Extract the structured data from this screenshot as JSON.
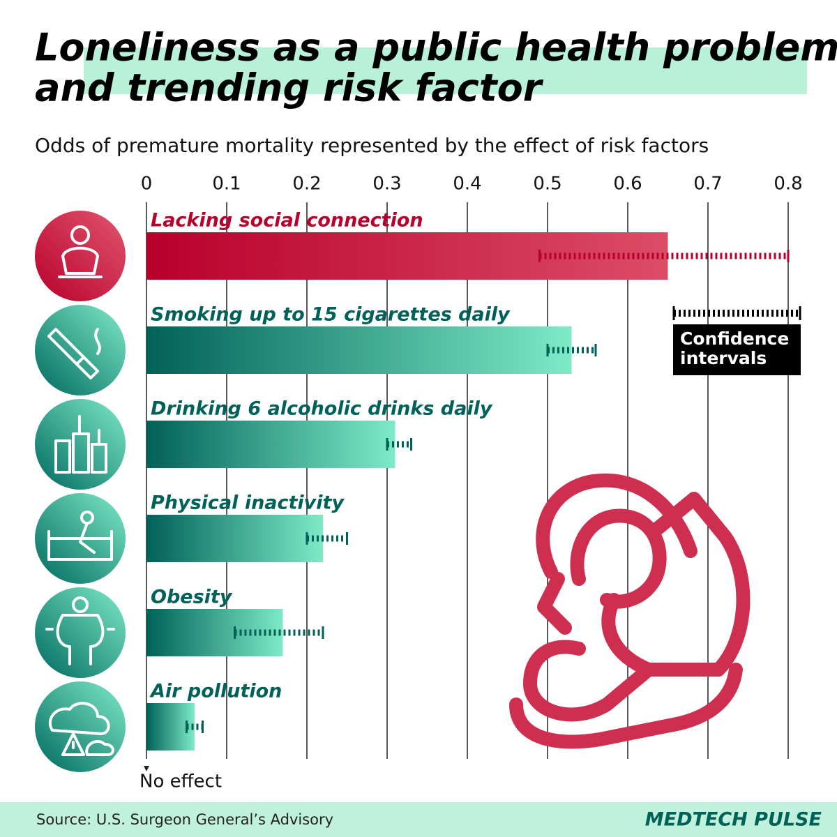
{
  "chart_data": {
    "type": "bar",
    "title_lines": [
      "Loneliness as a public health problem",
      "and trending risk factor"
    ],
    "subtitle": "Odds of premature mortality represented by the effect of risk factors",
    "categories": [
      "Lacking social connection",
      "Smoking up to 15 cigarettes daily",
      "Drinking 6 alcoholic drinks daily",
      "Physical inactivity",
      "Obesity",
      "Air pollution"
    ],
    "values": [
      0.65,
      0.53,
      0.31,
      0.22,
      0.17,
      0.06
    ],
    "ci_low": [
      0.49,
      0.5,
      0.3,
      0.2,
      0.11,
      0.05
    ],
    "ci_high": [
      0.8,
      0.56,
      0.33,
      0.25,
      0.22,
      0.07
    ],
    "bar_colors": [
      [
        "#b8002c",
        "#dc4d66"
      ],
      [
        "#006158",
        "#7eeac6"
      ],
      [
        "#006158",
        "#7eeac6"
      ],
      [
        "#006158",
        "#7eeac6"
      ],
      [
        "#006158",
        "#7eeac6"
      ],
      [
        "#006158",
        "#7eeac6"
      ]
    ],
    "xlim": [
      0,
      0.8
    ],
    "xticks": [
      0,
      0.1,
      0.2,
      0.3,
      0.4,
      0.5,
      0.6,
      0.7,
      0.8
    ],
    "grid": true,
    "baseline_label": "No effect",
    "legend_label": "Confidence intervals",
    "source": "Source: U.S. Surgeon General’s Advisory",
    "brand": "MEDTECH PULSE"
  }
}
